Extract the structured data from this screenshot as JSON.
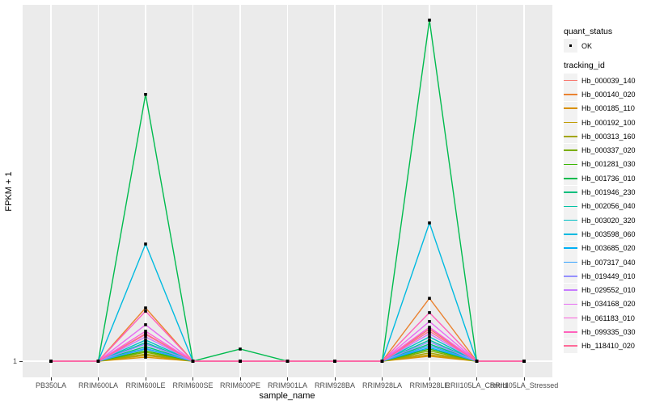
{
  "colors": {
    "panel_bg": "#EBEBEB",
    "gridline": "#FFFFFF",
    "axis_tick_text": "#4D4D4D",
    "tick_mark": "#333333",
    "legend_key_bg": "#F2F2F2",
    "point": "#000000"
  },
  "legend": {
    "quant_title": "quant_status",
    "quant_items": [
      {
        "label": "OK",
        "marker": "black-point"
      }
    ],
    "tracking_title": "tracking_id"
  },
  "chart_data": {
    "type": "line",
    "title": "",
    "xlabel": "sample_name",
    "ylabel": "FPKM + 1",
    "y_tick_labels": [
      "1"
    ],
    "values_unit": "percent of panel height above the y=1 baseline (estimated from pixels; only the '1' tick is labeled on the y-axis)",
    "grid": "vertical white gridlines at each sample; horizontal white gridline at y=1",
    "legend_position": "right",
    "point_marker": "small black point at every sample for every series (quant_status = OK)",
    "categories": [
      "PB350LA",
      "RRIM600LA",
      "RRIM600LE",
      "RRIM600SE",
      "RRIM600PE",
      "RRIM901LA",
      "RRIM928BA",
      "RRIM928LA",
      "RRIM928LE",
      "RRII105LA_Control",
      "RRII105LA_Stressed"
    ],
    "series": [
      {
        "name": "Hb_000039_140",
        "color": "#F8766D",
        "values": [
          0,
          0,
          7.7,
          0,
          0,
          0,
          0,
          0,
          9.0,
          0,
          0
        ]
      },
      {
        "name": "Hb_000140_020",
        "color": "#EA8331",
        "values": [
          0,
          0,
          14.9,
          0,
          0,
          0,
          0,
          0,
          17.6,
          0,
          0
        ]
      },
      {
        "name": "Hb_000185_110",
        "color": "#D89000",
        "values": [
          0,
          0,
          1.1,
          0,
          0,
          0,
          0,
          0,
          1.4,
          0,
          0
        ]
      },
      {
        "name": "Hb_000192_100",
        "color": "#C09B00",
        "values": [
          0,
          0,
          1.6,
          0,
          0,
          0,
          0,
          0,
          1.8,
          0,
          0
        ]
      },
      {
        "name": "Hb_000313_160",
        "color": "#A3A500",
        "values": [
          0,
          0,
          2.0,
          0,
          0,
          0,
          0,
          0,
          2.3,
          0,
          0
        ]
      },
      {
        "name": "Hb_000337_020",
        "color": "#7CAE00",
        "values": [
          0,
          0,
          2.5,
          0,
          0,
          0,
          0,
          0,
          2.9,
          0,
          0
        ]
      },
      {
        "name": "Hb_001281_030",
        "color": "#39B600",
        "values": [
          0,
          0,
          2.9,
          0,
          0,
          0,
          0,
          0,
          3.4,
          0,
          0
        ]
      },
      {
        "name": "Hb_001736_010",
        "color": "#00BB4E",
        "values": [
          0,
          0,
          74.7,
          0,
          3.4,
          0,
          0,
          0,
          95.5,
          0,
          0
        ]
      },
      {
        "name": "Hb_001946_230",
        "color": "#00BF7D",
        "values": [
          0,
          0,
          4.1,
          0,
          0,
          0,
          0,
          0,
          4.8,
          0,
          0
        ]
      },
      {
        "name": "Hb_002056_040",
        "color": "#00C1A3",
        "values": [
          0,
          0,
          5.2,
          0,
          0,
          0,
          0,
          0,
          5.9,
          0,
          0
        ]
      },
      {
        "name": "Hb_003020_320",
        "color": "#00BFC4",
        "values": [
          0,
          0,
          5.9,
          0,
          0,
          0,
          0,
          0,
          6.8,
          0,
          0
        ]
      },
      {
        "name": "Hb_003598_060",
        "color": "#00BAE0",
        "values": [
          0,
          0,
          32.8,
          0,
          0,
          0,
          0,
          0,
          38.7,
          0,
          0
        ]
      },
      {
        "name": "Hb_003685_020",
        "color": "#00B0F6",
        "values": [
          0,
          0,
          3.4,
          0,
          0,
          0,
          0,
          0,
          3.8,
          0,
          0
        ]
      },
      {
        "name": "Hb_007317_040",
        "color": "#35A2FF",
        "values": [
          0,
          0,
          3.6,
          0,
          0,
          0,
          0,
          0,
          4.3,
          0,
          0
        ]
      },
      {
        "name": "Hb_019449_010",
        "color": "#9590FF",
        "values": [
          0,
          0,
          4.8,
          0,
          0,
          0,
          0,
          0,
          5.4,
          0,
          0
        ]
      },
      {
        "name": "Hb_029552_010",
        "color": "#C77CFF",
        "values": [
          0,
          0,
          6.8,
          0,
          0,
          0,
          0,
          0,
          7.7,
          0,
          0
        ]
      },
      {
        "name": "Hb_034168_020",
        "color": "#E76BF3",
        "values": [
          0,
          0,
          10.2,
          0,
          0,
          0,
          0,
          0,
          11.1,
          0,
          0
        ]
      },
      {
        "name": "Hb_061183_010",
        "color": "#FA62DB",
        "values": [
          0,
          0,
          8.4,
          0,
          0,
          0,
          0,
          0,
          9.5,
          0,
          0
        ]
      },
      {
        "name": "Hb_099335_030",
        "color": "#FF62BC",
        "values": [
          0,
          0,
          14.0,
          0,
          0,
          0,
          0,
          0,
          13.6,
          0,
          0
        ]
      },
      {
        "name": "Hb_118410_020",
        "color": "#FF6A98",
        "values": [
          0,
          0,
          7.5,
          0,
          0,
          0,
          0,
          0,
          8.4,
          0,
          0
        ]
      }
    ]
  }
}
